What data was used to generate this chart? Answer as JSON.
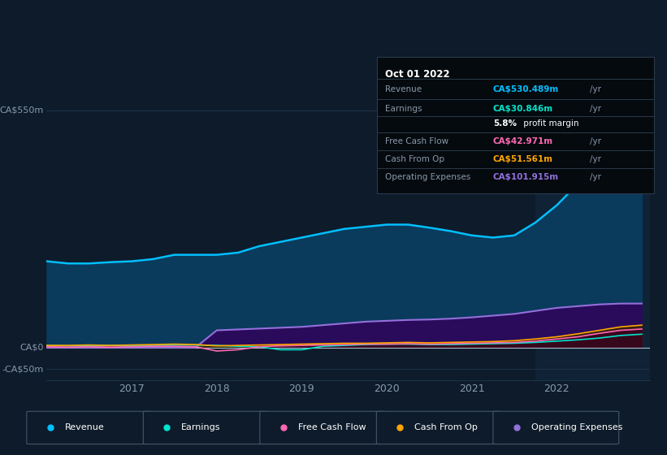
{
  "background_color": "#0d1b2a",
  "plot_bg_color": "#0d1b2a",
  "highlight_bg_color": "#0f2236",
  "axis_label_color": "#8899aa",
  "grid_color": "#1e3348",
  "revenue_color": "#00bfff",
  "revenue_fill_color": "#0a3a5c",
  "earnings_color": "#00e5cc",
  "earnings_fill_color": "#003a35",
  "freecashflow_color": "#ff69b4",
  "freecashflow_fill_color": "#3a0020",
  "cashfromop_color": "#ffa500",
  "cashfromop_fill_color": "#3a2500",
  "opex_color": "#9370db",
  "opex_fill_color": "#2a0a5a",
  "x_years": [
    2016.0,
    2016.25,
    2016.5,
    2016.75,
    2017.0,
    2017.25,
    2017.5,
    2017.75,
    2018.0,
    2018.25,
    2018.5,
    2018.75,
    2019.0,
    2019.25,
    2019.5,
    2019.75,
    2020.0,
    2020.25,
    2020.5,
    2020.75,
    2021.0,
    2021.25,
    2021.5,
    2021.75,
    2022.0,
    2022.25,
    2022.5,
    2022.75,
    2023.0
  ],
  "revenue": [
    200,
    195,
    195,
    198,
    200,
    205,
    215,
    215,
    215,
    220,
    235,
    245,
    255,
    265,
    275,
    280,
    285,
    285,
    278,
    270,
    260,
    255,
    260,
    290,
    330,
    380,
    450,
    510,
    530
  ],
  "earnings": [
    5,
    4,
    4,
    5,
    5,
    5,
    6,
    6,
    5,
    3,
    2,
    -5,
    -5,
    3,
    5,
    7,
    8,
    8,
    7,
    7,
    8,
    9,
    10,
    12,
    15,
    18,
    22,
    28,
    31
  ],
  "freecashflow": [
    2,
    1,
    2,
    1,
    2,
    3,
    3,
    2,
    -8,
    -5,
    2,
    4,
    5,
    6,
    7,
    8,
    8,
    9,
    8,
    9,
    10,
    11,
    12,
    15,
    20,
    25,
    33,
    40,
    43
  ],
  "cashfromop": [
    5,
    5,
    6,
    5,
    6,
    7,
    8,
    7,
    4,
    5,
    6,
    7,
    8,
    9,
    10,
    10,
    11,
    12,
    11,
    12,
    13,
    14,
    16,
    20,
    25,
    32,
    40,
    48,
    52
  ],
  "opex": [
    0,
    0,
    0,
    0,
    0,
    0,
    0,
    0,
    40,
    42,
    44,
    46,
    48,
    52,
    56,
    60,
    62,
    64,
    65,
    67,
    70,
    74,
    78,
    85,
    92,
    96,
    100,
    102,
    102
  ],
  "highlight_start": 2021.75,
  "highlight_end": 2023.2,
  "tooltip_title": "Oct 01 2022",
  "tooltip_rows": [
    {
      "label": "Revenue",
      "value": "CA$530.489m",
      "unit": "/yr",
      "color": "#00bfff",
      "bold": true
    },
    {
      "label": "Earnings",
      "value": "CA$30.846m",
      "unit": "/yr",
      "color": "#00e5cc",
      "bold": true
    },
    {
      "label": "",
      "value": "5.8%",
      "unit": " profit margin",
      "color": "#ffffff",
      "bold": true
    },
    {
      "label": "Free Cash Flow",
      "value": "CA$42.971m",
      "unit": "/yr",
      "color": "#ff69b4",
      "bold": true
    },
    {
      "label": "Cash From Op",
      "value": "CA$51.561m",
      "unit": "/yr",
      "color": "#ffa500",
      "bold": true
    },
    {
      "label": "Operating Expenses",
      "value": "CA$101.915m",
      "unit": "/yr",
      "color": "#9370db",
      "bold": true
    }
  ],
  "legend_items": [
    {
      "label": "Revenue",
      "color": "#00bfff"
    },
    {
      "label": "Earnings",
      "color": "#00e5cc"
    },
    {
      "label": "Free Cash Flow",
      "color": "#ff69b4"
    },
    {
      "label": "Cash From Op",
      "color": "#ffa500"
    },
    {
      "label": "Operating Expenses",
      "color": "#9370db"
    }
  ],
  "ylim": [
    -75,
    600
  ],
  "xlim": [
    2016.0,
    2023.1
  ],
  "xticks": [
    2017,
    2018,
    2019,
    2020,
    2021,
    2022
  ],
  "xtick_labels": [
    "2017",
    "2018",
    "2019",
    "2020",
    "2021",
    "2022"
  ],
  "hlines": [
    -50,
    0,
    550
  ],
  "ylabel_texts": [
    "CA$550m",
    "CA$0",
    "-CA$50m"
  ],
  "ylabel_vals": [
    550,
    0,
    -50
  ]
}
